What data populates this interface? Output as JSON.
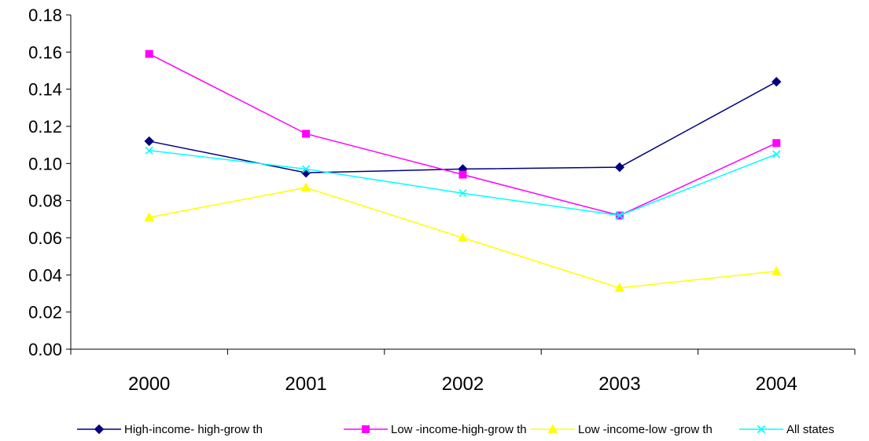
{
  "chart_data": {
    "type": "line",
    "title": "",
    "xlabel": "",
    "ylabel": "",
    "categories": [
      "2000",
      "2001",
      "2002",
      "2003",
      "2004"
    ],
    "ylim": [
      0,
      0.18
    ],
    "yticks": [
      "0.00",
      "0.02",
      "0.04",
      "0.06",
      "0.08",
      "0.10",
      "0.12",
      "0.14",
      "0.16",
      "0.18"
    ],
    "grid": false,
    "legend_position": "bottom",
    "series": [
      {
        "name": "High-income- high-grow th",
        "color": "#000080",
        "marker": "diamond",
        "values": [
          0.112,
          0.095,
          0.097,
          0.098,
          0.144
        ]
      },
      {
        "name": "Low -income-high-grow th",
        "color": "#FF00FF",
        "marker": "square",
        "values": [
          0.159,
          0.116,
          0.094,
          0.072,
          0.111
        ]
      },
      {
        "name": "Low -income-low -grow th",
        "color": "#FFFF00",
        "marker": "triangle",
        "values": [
          0.071,
          0.087,
          0.06,
          0.033,
          0.042
        ]
      },
      {
        "name": "All states",
        "color": "#00FFFF",
        "marker": "x",
        "values": [
          0.107,
          0.097,
          0.084,
          0.072,
          0.105
        ]
      }
    ]
  }
}
